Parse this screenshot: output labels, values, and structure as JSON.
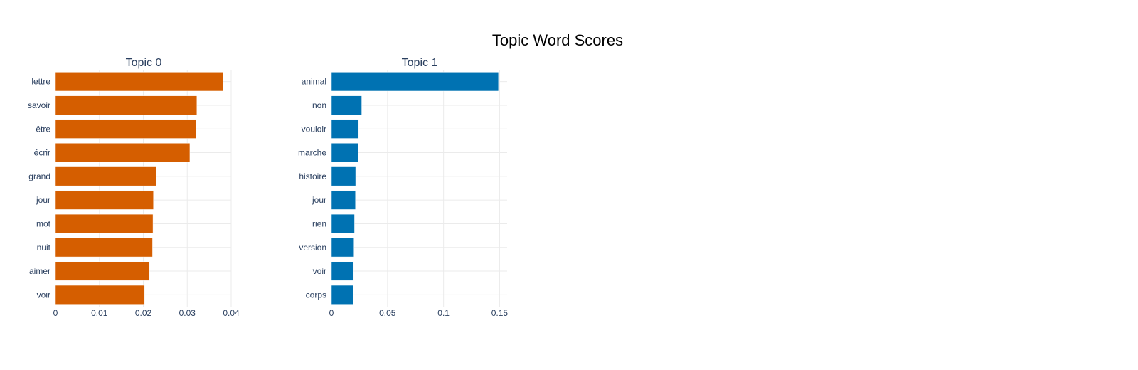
{
  "figure": {
    "title": "Topic Word Scores"
  },
  "chart_data": [
    {
      "type": "bar",
      "orientation": "horizontal",
      "title": "Topic 0",
      "color": "#D55E00",
      "categories": [
        "lettre",
        "savoir",
        "être",
        "écrir",
        "grand",
        "jour",
        "mot",
        "nuit",
        "aimer",
        "voir"
      ],
      "values": [
        0.0381,
        0.0322,
        0.032,
        0.0306,
        0.0229,
        0.0223,
        0.0222,
        0.0221,
        0.0214,
        0.0203
      ],
      "xlim": [
        0,
        0.04
      ],
      "xticks": [
        0,
        0.01,
        0.02,
        0.03,
        0.04
      ],
      "xtick_labels": [
        "0",
        "0.01",
        "0.02",
        "0.03",
        "0.04"
      ],
      "grid": true
    },
    {
      "type": "bar",
      "orientation": "horizontal",
      "title": "Topic 1",
      "color": "#0072B2",
      "categories": [
        "animal",
        "non",
        "vouloir",
        "marche",
        "histoire",
        "jour",
        "rien",
        "version",
        "voir",
        "corps"
      ],
      "values": [
        0.149,
        0.027,
        0.0242,
        0.0237,
        0.0216,
        0.0214,
        0.0206,
        0.0201,
        0.0197,
        0.0192
      ],
      "xlim": [
        0,
        0.1567
      ],
      "xticks": [
        0,
        0.05,
        0.1,
        0.15
      ],
      "xtick_labels": [
        "0",
        "0.05",
        "0.1",
        "0.15"
      ],
      "grid": true
    }
  ]
}
